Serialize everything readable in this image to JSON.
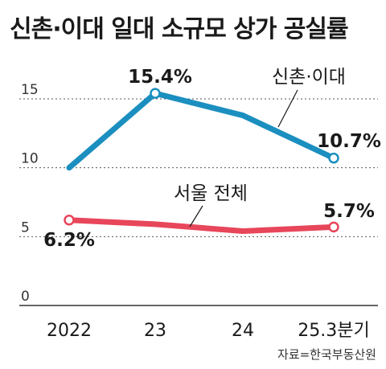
{
  "chart_data": {
    "type": "line",
    "title": "신촌·이대 일대 소규모 상가 공실률",
    "categories": [
      "2022",
      "23",
      "24",
      "25.3분기"
    ],
    "ylim": [
      0,
      17
    ],
    "yticks": [
      0,
      5,
      10,
      15
    ],
    "grid": true,
    "series": [
      {
        "name": "신촌·이대",
        "values": [
          10.0,
          15.4,
          13.8,
          10.7
        ],
        "color": "#1b8fbf",
        "labels": [
          null,
          "15.4%",
          null,
          "10.7%"
        ]
      },
      {
        "name": "서울 전체",
        "values": [
          6.2,
          5.9,
          5.4,
          5.7
        ],
        "color": "#e8465a",
        "labels": [
          "6.2%",
          null,
          null,
          "5.7%"
        ]
      }
    ],
    "source": "자료=한국부동산원"
  }
}
